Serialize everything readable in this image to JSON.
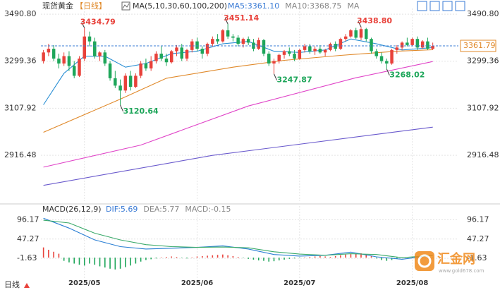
{
  "chart_data": {
    "type": "candlestick",
    "title": "现货黄金",
    "period": "【日线】",
    "ma_label": "MA(5,10,30,60,100,200)",
    "ma_values": [
      {
        "text": "MA5:3361.10",
        "color": "#3a7bd5"
      },
      {
        "text": "MA10:3368.75",
        "color": "#888888"
      },
      {
        "text": "MA",
        "color": "#888888"
      }
    ],
    "categories": [
      null,
      null,
      null,
      null,
      null,
      null,
      null,
      null,
      "2025/05",
      null,
      null,
      null,
      null,
      null,
      null,
      null,
      null,
      null,
      null,
      null,
      null,
      null,
      null,
      null,
      null,
      null,
      null,
      null,
      null,
      null,
      "2025/06",
      null,
      null,
      null,
      null,
      null,
      null,
      null,
      null,
      null,
      null,
      null,
      null,
      null,
      null,
      null,
      null,
      null,
      null,
      null,
      "2025/07",
      null,
      null,
      null,
      null,
      null,
      null,
      null,
      null,
      null,
      null,
      null,
      null,
      null,
      null,
      null,
      null,
      null,
      null,
      null,
      null,
      null,
      "2025/08",
      null,
      null,
      null,
      null
    ],
    "open": [
      3300,
      3335,
      3350,
      3310,
      3290,
      3320,
      3280,
      3240,
      3310,
      3400,
      3380,
      3320,
      3335,
      3290,
      3230,
      3200,
      3180,
      3240,
      3195,
      3240,
      3290,
      3270,
      3300,
      3330,
      3310,
      3295,
      3340,
      3355,
      3310,
      3345,
      3380,
      3350,
      3330,
      3370,
      3390,
      3380,
      3425,
      3400,
      3395,
      3370,
      3390,
      3375,
      3350,
      3385,
      3330,
      3290,
      3300,
      3325,
      3340,
      3330,
      3310,
      3345,
      3360,
      3340,
      3350,
      3335,
      3345,
      3370,
      3350,
      3390,
      3400,
      3425,
      3395,
      3430,
      3390,
      3340,
      3320,
      3300,
      3290,
      3345,
      3355,
      3375,
      3365,
      3390,
      3355,
      3380,
      3350
    ],
    "high": [
      3345,
      3370,
      3365,
      3330,
      3335,
      3340,
      3300,
      3320,
      3434.79,
      3420,
      3395,
      3340,
      3345,
      3300,
      3260,
      3225,
      3250,
      3260,
      3250,
      3300,
      3310,
      3320,
      3340,
      3360,
      3330,
      3345,
      3365,
      3370,
      3350,
      3390,
      3395,
      3360,
      3375,
      3400,
      3410,
      3430,
      3451.14,
      3410,
      3405,
      3395,
      3400,
      3390,
      3395,
      3390,
      3340,
      3310,
      3330,
      3345,
      3355,
      3345,
      3350,
      3370,
      3370,
      3360,
      3365,
      3350,
      3375,
      3380,
      3395,
      3410,
      3430,
      3435,
      3438.8,
      3435,
      3395,
      3350,
      3335,
      3310,
      3350,
      3365,
      3380,
      3395,
      3395,
      3400,
      3385,
      3395,
      3375
    ],
    "low": [
      3290,
      3320,
      3300,
      3270,
      3280,
      3260,
      3230,
      3235,
      3300,
      3360,
      3310,
      3300,
      3280,
      3220,
      3190,
      3120.64,
      3170,
      3180,
      3190,
      3230,
      3260,
      3260,
      3290,
      3300,
      3280,
      3290,
      3320,
      3300,
      3300,
      3335,
      3340,
      3310,
      3320,
      3360,
      3370,
      3375,
      3390,
      3380,
      3360,
      3355,
      3365,
      3340,
      3345,
      3320,
      3280,
      3247.87,
      3290,
      3310,
      3320,
      3300,
      3305,
      3335,
      3330,
      3325,
      3330,
      3320,
      3340,
      3340,
      3345,
      3380,
      3395,
      3390,
      3385,
      3380,
      3330,
      3310,
      3290,
      3268.02,
      3285,
      3330,
      3345,
      3360,
      3360,
      3345,
      3350,
      3345,
      3345
    ],
    "close": [
      3335,
      3350,
      3310,
      3290,
      3320,
      3280,
      3240,
      3310,
      3400,
      3380,
      3320,
      3335,
      3290,
      3230,
      3200,
      3180,
      3240,
      3195,
      3240,
      3290,
      3270,
      3300,
      3330,
      3310,
      3295,
      3340,
      3355,
      3310,
      3345,
      3380,
      3350,
      3330,
      3370,
      3390,
      3380,
      3425,
      3400,
      3395,
      3370,
      3390,
      3375,
      3350,
      3385,
      3330,
      3290,
      3300,
      3325,
      3340,
      3330,
      3310,
      3345,
      3360,
      3340,
      3350,
      3335,
      3345,
      3370,
      3350,
      3390,
      3400,
      3425,
      3395,
      3430,
      3390,
      3340,
      3320,
      3300,
      3290,
      3345,
      3355,
      3375,
      3365,
      3390,
      3355,
      3380,
      3350,
      3361.79
    ],
    "up_color": "#e8413a",
    "down_color": "#1ea65a",
    "ma_lines": [
      {
        "color": "#2a8fd4",
        "x": [
          0,
          4,
          8,
          12,
          16,
          20,
          25,
          30,
          35,
          40,
          45,
          50,
          55,
          60,
          65,
          70,
          76
        ],
        "values": [
          3122,
          3250,
          3320,
          3320,
          3275,
          3290,
          3330,
          3340,
          3370,
          3380,
          3340,
          3335,
          3345,
          3390,
          3370,
          3345,
          3355
        ]
      },
      {
        "color": "#e0892a",
        "x": [
          0,
          15,
          24,
          37,
          47,
          58,
          69,
          76
        ],
        "values": [
          3010,
          3145,
          3230,
          3275,
          3303,
          3323,
          3340,
          3346
        ]
      },
      {
        "color": "#e044c8",
        "x": [
          0,
          19,
          40,
          61,
          76
        ],
        "values": [
          2868,
          2958,
          3117,
          3232,
          3298
        ]
      },
      {
        "color": "#6a5acd",
        "x": [
          0,
          33,
          76
        ],
        "values": [
          2794,
          2916,
          3031
        ]
      }
    ],
    "annotations": [
      {
        "index": 8,
        "value": 3434.79,
        "label": "3434.79",
        "color": "#e8413a"
      },
      {
        "index": 15,
        "value": 3120.64,
        "label": "3120.64",
        "color": "#1ea65a"
      },
      {
        "index": 36,
        "value": 3451.14,
        "label": "3451.14",
        "color": "#e8413a"
      },
      {
        "index": 45,
        "value": 3247.87,
        "label": "3247.87",
        "color": "#1ea65a"
      },
      {
        "index": 62,
        "value": 3438.8,
        "label": "3438.80",
        "color": "#e8413a"
      },
      {
        "index": 67,
        "value": 3268.02,
        "label": "3268.02",
        "color": "#1ea65a"
      }
    ],
    "last_price": 3361.79,
    "xlim": [
      -0.5,
      81
    ],
    "ylim": [
      2730,
      3514
    ],
    "yticks": [
      {
        "value": 3490.8,
        "label": "3490.80"
      },
      3299.36,
      3107.92,
      2916.48
    ],
    "grid": true,
    "macd": {
      "label": "MACD(26,12,9)",
      "texts": [
        {
          "text": "DIF:5.69",
          "color": "#3a7bd5"
        },
        {
          "text": "DEA:5.77",
          "color": "#888888"
        },
        {
          "text": "MACD:-0.15",
          "color": "#888888"
        }
      ],
      "ylim": [
        -57,
        131
      ],
      "yticks": [
        96.17,
        47.27,
        -1.63
      ],
      "histogram": [
        26,
        20,
        15,
        10,
        -8,
        -12,
        -15,
        -18,
        -20,
        -15,
        -18,
        -22,
        -25,
        -28,
        -30,
        -28,
        -24,
        -20,
        -15,
        -10,
        -6,
        -4,
        -2,
        1,
        2,
        3,
        2,
        -1,
        -2,
        1,
        3,
        4,
        5,
        6,
        7,
        8,
        6,
        4,
        2,
        -1,
        -3,
        -5,
        -7,
        -8,
        -10,
        -9,
        -7,
        -5,
        -3,
        -2,
        -1,
        1,
        2,
        3,
        4,
        3,
        2,
        4,
        6,
        8,
        9,
        10,
        11,
        8,
        4,
        -2,
        -6,
        -8,
        -6,
        -3,
        -1,
        1,
        3,
        2,
        1,
        0.5,
        -0.15
      ],
      "lines": [
        {
          "color": "#2a7fd4",
          "x": [
            0,
            5,
            10,
            15,
            20,
            25,
            30,
            35,
            40,
            45,
            50,
            55,
            60,
            65,
            70,
            76
          ],
          "values": [
            100,
            75,
            45,
            28,
            22,
            24,
            26,
            30,
            22,
            8,
            4,
            6,
            14,
            2,
            -4,
            5.69
          ]
        },
        {
          "color": "#3aaa6a",
          "x": [
            0,
            5,
            10,
            15,
            20,
            25,
            30,
            35,
            40,
            45,
            50,
            55,
            60,
            65,
            70,
            76
          ],
          "values": [
            95,
            88,
            62,
            45,
            33,
            28,
            26,
            27,
            25,
            15,
            9,
            6,
            10,
            8,
            0,
            5.77
          ]
        }
      ]
    },
    "period_button": "日线"
  },
  "watermark": {
    "name": "汇金网",
    "url": "www.gold678.com"
  }
}
